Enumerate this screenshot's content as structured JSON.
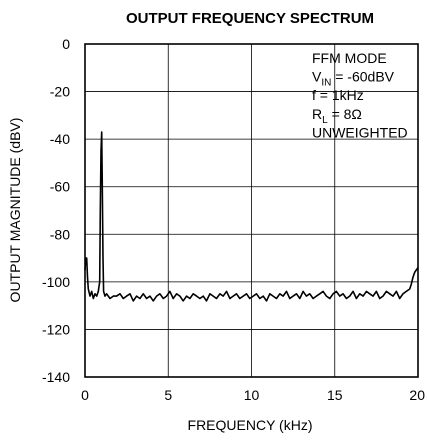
{
  "chart_data": {
    "type": "line",
    "title": "OUTPUT FREQUENCY SPECTRUM",
    "xlabel": "FREQUENCY (kHz)",
    "ylabel": "OUTPUT MAGNITUDE (dBV)",
    "xlim": [
      0,
      20
    ],
    "ylim": [
      -140,
      0
    ],
    "x_ticks": [
      0,
      5,
      10,
      15,
      20
    ],
    "y_ticks": [
      0,
      -20,
      -40,
      -60,
      -80,
      -100,
      -120,
      -140
    ],
    "grid": true,
    "annotations": [
      {
        "main": "FFM MODE"
      },
      {
        "main": "V",
        "sub": "IN",
        "rest": " = -60dBV"
      },
      {
        "main": "f = 1kHz"
      },
      {
        "main": "R",
        "sub": "L",
        "rest": " = 8Ω"
      },
      {
        "main": "UNWEIGHTED"
      }
    ],
    "series": [
      {
        "x": [
          0.0,
          0.05,
          0.1,
          0.15,
          0.2,
          0.3,
          0.4,
          0.5,
          0.6,
          0.7,
          0.8,
          0.88,
          0.92,
          0.96,
          1.0,
          1.04,
          1.08,
          1.12,
          1.2,
          1.3,
          1.5,
          1.7,
          1.9,
          2.1,
          2.3,
          2.5,
          2.7,
          2.9,
          3.1,
          3.3,
          3.5,
          3.7,
          3.9,
          4.1,
          4.3,
          4.5,
          4.7,
          4.9,
          5.1,
          5.3,
          5.5,
          5.7,
          5.9,
          6.1,
          6.3,
          6.5,
          6.7,
          6.9,
          7.1,
          7.3,
          7.5,
          7.7,
          7.9,
          8.1,
          8.3,
          8.5,
          8.7,
          8.9,
          9.1,
          9.3,
          9.5,
          9.7,
          9.9,
          10.1,
          10.3,
          10.5,
          10.7,
          10.9,
          11.1,
          11.3,
          11.5,
          11.7,
          11.9,
          12.1,
          12.3,
          12.5,
          12.7,
          12.9,
          13.1,
          13.3,
          13.5,
          13.7,
          13.9,
          14.1,
          14.3,
          14.5,
          14.7,
          14.9,
          15.1,
          15.3,
          15.5,
          15.7,
          15.9,
          16.1,
          16.3,
          16.5,
          16.7,
          16.9,
          17.1,
          17.3,
          17.5,
          17.7,
          17.9,
          18.1,
          18.3,
          18.5,
          18.7,
          18.9,
          19.1,
          19.3,
          19.5,
          19.6,
          19.7,
          19.8,
          19.9,
          20.0
        ],
        "y": [
          -95,
          -90,
          -90,
          -98,
          -103,
          -106,
          -104,
          -107,
          -105,
          -106,
          -104,
          -100,
          -70,
          -45,
          -37,
          -60,
          -90,
          -104,
          -106,
          -105,
          -107,
          -106,
          -106,
          -105,
          -107,
          -106,
          -105,
          -108,
          -106,
          -107,
          -105,
          -107,
          -106,
          -108,
          -106,
          -105,
          -107,
          -106,
          -104,
          -107,
          -105,
          -106,
          -108,
          -106,
          -107,
          -105,
          -106,
          -107,
          -106,
          -108,
          -105,
          -106,
          -107,
          -105,
          -106,
          -104,
          -107,
          -106,
          -105,
          -107,
          -106,
          -105,
          -107,
          -106,
          -105,
          -107,
          -106,
          -108,
          -105,
          -106,
          -107,
          -105,
          -106,
          -104,
          -107,
          -106,
          -105,
          -107,
          -104,
          -106,
          -105,
          -107,
          -106,
          -105,
          -104,
          -106,
          -107,
          -105,
          -104,
          -106,
          -105,
          -107,
          -106,
          -104,
          -107,
          -105,
          -106,
          -104,
          -105,
          -106,
          -104,
          -107,
          -106,
          -104,
          -105,
          -106,
          -104,
          -107,
          -105,
          -104,
          -103,
          -101,
          -98,
          -96,
          -95,
          -94
        ]
      }
    ]
  }
}
